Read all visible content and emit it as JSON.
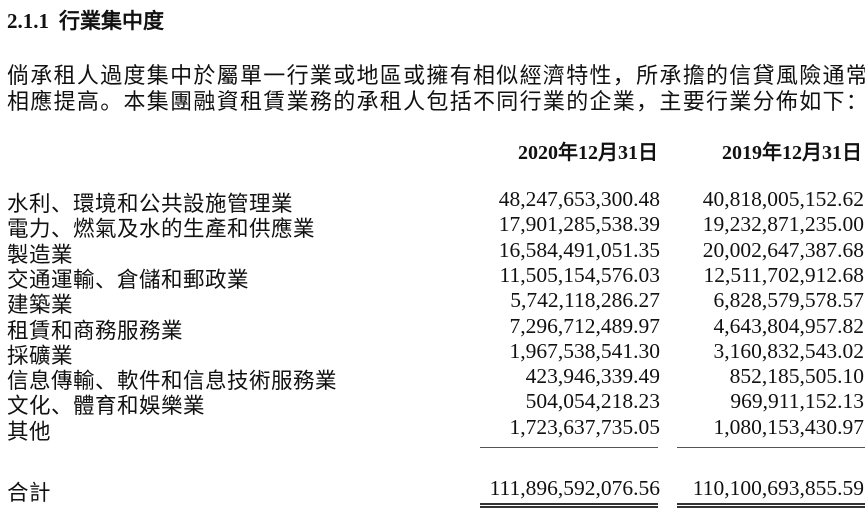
{
  "section": {
    "number": "2.1.1",
    "title": "行業集中度"
  },
  "paragraph": [
    "倘承租人過度集中於屬單一行業或地區或擁有相似經濟特性，所承擔的信貸風險通常會",
    "相應提高。本集團融資租賃業務的承租人包括不同行業的企業，主要行業分佈如下："
  ],
  "table": {
    "columns": [
      "2020年12月31日",
      "2019年12月31日"
    ],
    "rows": [
      {
        "label": "水利、環境和公共設施管理業",
        "v2020": "48,247,653,300.48",
        "v2019": "40,818,005,152.62"
      },
      {
        "label": "電力、燃氣及水的生產和供應業",
        "v2020": "17,901,285,538.39",
        "v2019": "19,232,871,235.00"
      },
      {
        "label": "製造業",
        "v2020": "16,584,491,051.35",
        "v2019": "20,002,647,387.68"
      },
      {
        "label": "交通運輸、倉儲和郵政業",
        "v2020": "11,505,154,576.03",
        "v2019": "12,511,702,912.68"
      },
      {
        "label": "建築業",
        "v2020": "5,742,118,286.27",
        "v2019": "6,828,579,578.57"
      },
      {
        "label": "租賃和商務服務業",
        "v2020": "7,296,712,489.97",
        "v2019": "4,643,804,957.82"
      },
      {
        "label": "採礦業",
        "v2020": "1,967,538,541.30",
        "v2019": "3,160,832,543.02"
      },
      {
        "label": "信息傳輸、軟件和信息技術服務業",
        "v2020": "423,946,339.49",
        "v2019": "852,185,505.10"
      },
      {
        "label": "文化、體育和娛樂業",
        "v2020": "504,054,218.23",
        "v2019": "969,911,152.13"
      },
      {
        "label": "其他",
        "v2020": "1,723,637,735.05",
        "v2019": "1,080,153,430.97"
      }
    ],
    "total": {
      "label": "合計",
      "v2020": "111,896,592,076.56",
      "v2019": "110,100,693,855.59"
    }
  }
}
